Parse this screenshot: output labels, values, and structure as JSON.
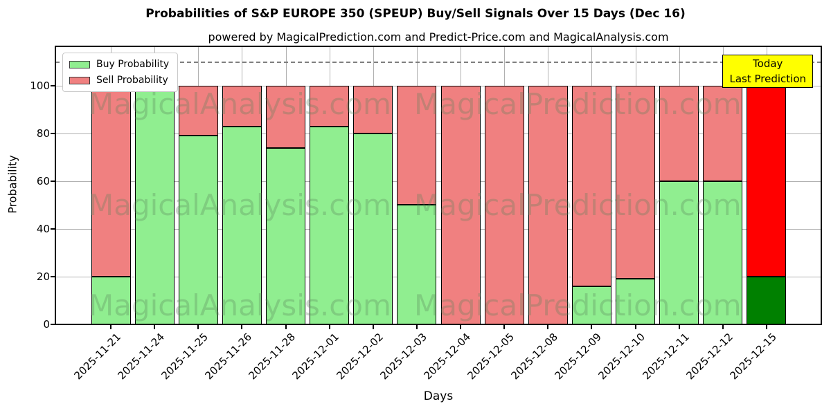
{
  "figure": {
    "title": "Probabilities of S&P EUROPE 350 (SPEUP) Buy/Sell Signals Over 15 Days (Dec 16)",
    "subtitle": "powered by MagicalPrediction.com and Predict-Price.com and MagicalAnalysis.com"
  },
  "chart_data": {
    "type": "bar",
    "stacked": true,
    "title": "Probabilities of S&P EUROPE 350 (SPEUP) Buy/Sell Signals Over 15 Days (Dec 16)",
    "xlabel": "Days",
    "ylabel": "Probability",
    "categories": [
      "2025-11-21",
      "2025-11-24",
      "2025-11-25",
      "2025-11-26",
      "2025-11-28",
      "2025-12-01",
      "2025-12-02",
      "2025-12-03",
      "2025-12-04",
      "2025-12-05",
      "2025-12-08",
      "2025-12-09",
      "2025-12-10",
      "2025-12-11",
      "2025-12-12",
      "2025-12-15"
    ],
    "series": [
      {
        "name": "Buy Probability",
        "color": "#90ee90",
        "values": [
          20,
          100,
          79,
          83,
          74,
          83,
          80,
          50,
          0,
          0,
          0,
          16,
          19,
          60,
          60,
          20
        ]
      },
      {
        "name": "Sell Probability",
        "color": "#f08080",
        "values": [
          80,
          0,
          21,
          17,
          26,
          17,
          20,
          50,
          100,
          100,
          100,
          84,
          81,
          40,
          40,
          80
        ]
      }
    ],
    "today_index": 15,
    "today_colors": {
      "buy": "#008000",
      "sell": "#ff0000"
    },
    "yticks": [
      0,
      20,
      40,
      60,
      80,
      100
    ],
    "ylim": [
      0,
      116.5
    ],
    "dashed_line_y": 110,
    "grid": true,
    "legend_position": "upper-left",
    "annotation": {
      "lines": [
        "Today",
        "Last Prediction"
      ],
      "bg": "#ffff00"
    },
    "watermarks": {
      "left": "MagicalAnalysis.com",
      "right": "MagicalPrediction.com"
    }
  }
}
